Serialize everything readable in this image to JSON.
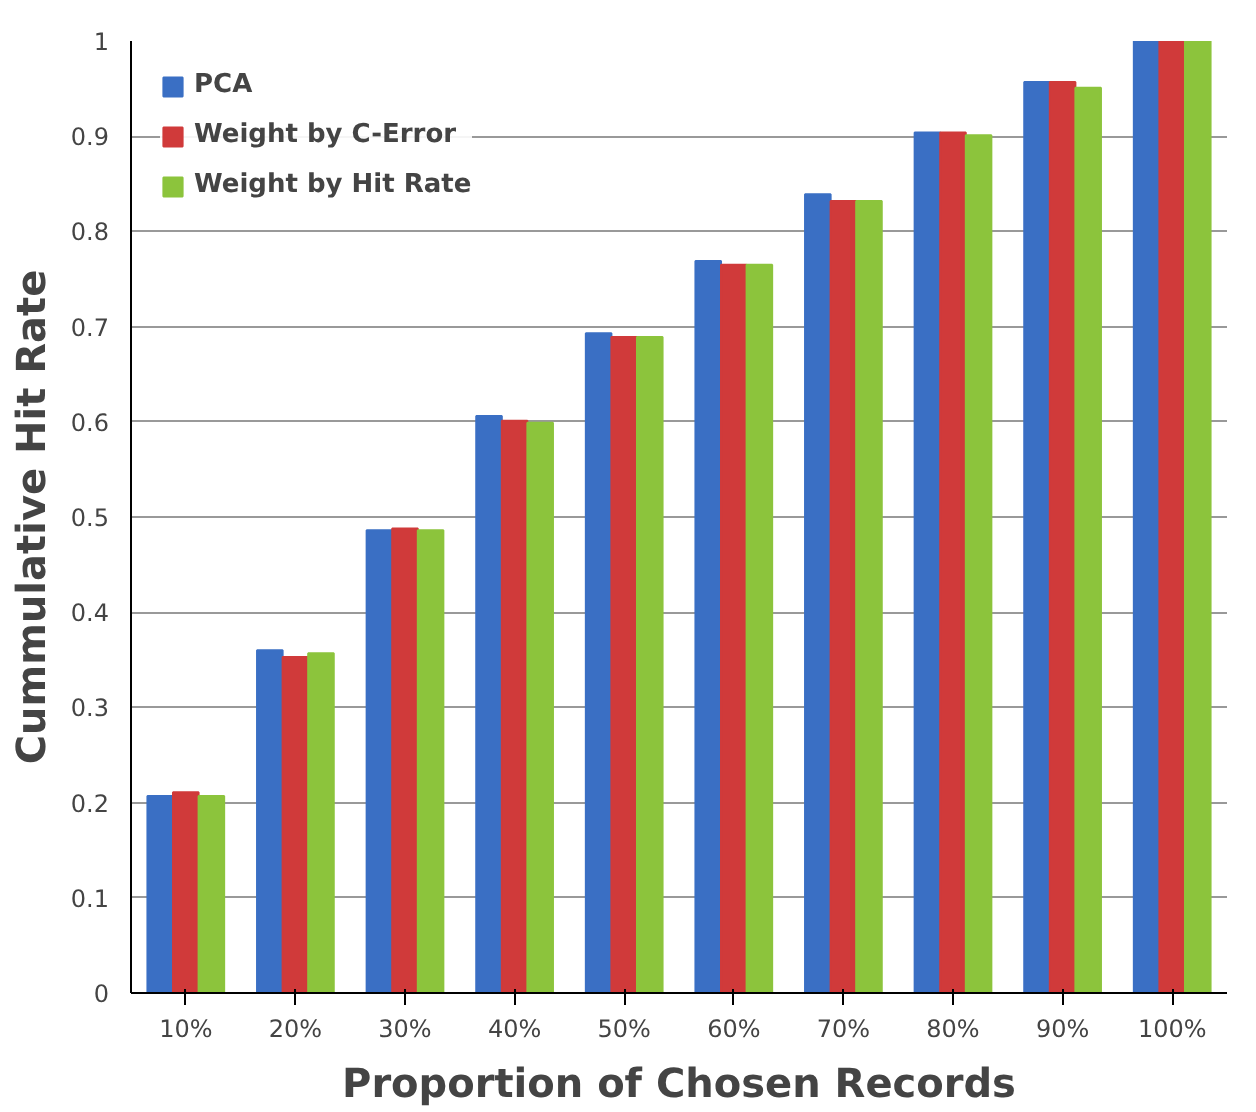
{
  "chart_data": {
    "type": "bar",
    "xlabel": "Proportion of Chosen Records",
    "ylabel": "Cummulative Hit Rate",
    "categories": [
      "10%",
      "20%",
      "30%",
      "40%",
      "50%",
      "60%",
      "70%",
      "80%",
      "90%",
      "100%"
    ],
    "series": [
      {
        "name": "PCA",
        "color": "#3a6fc4",
        "values": [
          0.207,
          0.36,
          0.486,
          0.606,
          0.693,
          0.769,
          0.839,
          0.904,
          0.957,
          1.0
        ]
      },
      {
        "name": "Weight by C-Error",
        "color": "#d03a3a",
        "values": [
          0.211,
          0.353,
          0.488,
          0.601,
          0.689,
          0.765,
          0.832,
          0.904,
          0.957,
          1.0
        ]
      },
      {
        "name": "Weight by Hit Rate",
        "color": "#8cc43c",
        "values": [
          0.207,
          0.357,
          0.486,
          0.599,
          0.689,
          0.765,
          0.832,
          0.901,
          0.951,
          1.0
        ]
      }
    ],
    "ylim": [
      0,
      1
    ],
    "yticks": [
      0,
      0.1,
      0.2,
      0.3,
      0.4,
      0.5,
      0.6,
      0.7,
      0.8,
      0.9,
      1
    ],
    "grid": "y",
    "legend": "top left"
  }
}
